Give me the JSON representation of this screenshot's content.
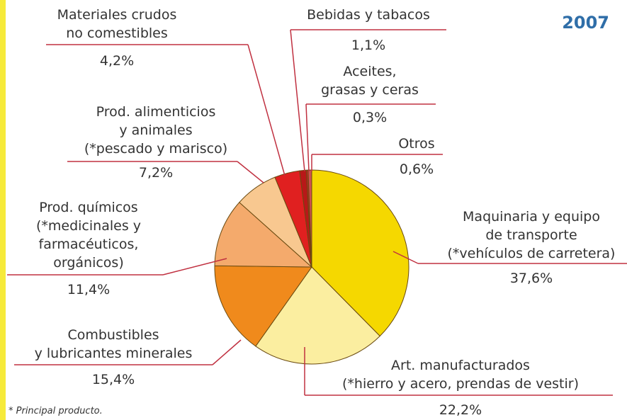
{
  "chart_data": {
    "type": "pie",
    "title": "2007",
    "categories": [
      [
        "Maquinaria y equipo",
        "de transporte",
        "(*vehículos de carretera)"
      ],
      [
        "Art. manufacturados",
        "(*hierro y acero, prendas de vestir)"
      ],
      [
        "Combustibles",
        "y lubricantes minerales"
      ],
      [
        "Prod. químicos",
        "(*medicinales y",
        "farmacéuticos,",
        "orgánicos)"
      ],
      [
        "Prod. alimenticios",
        "y animales",
        "(*pescado y marisco)"
      ],
      [
        "Materiales crudos",
        "no comestibles"
      ],
      [
        "Bebidas y tabacos"
      ],
      [
        "Aceites,",
        "grasas y ceras"
      ],
      [
        "Otros"
      ]
    ],
    "values": [
      37.6,
      22.2,
      15.4,
      11.4,
      7.2,
      4.2,
      1.1,
      0.3,
      0.6
    ],
    "value_labels": [
      "37,6%",
      "22,2%",
      "15,4%",
      "11,4%",
      "7,2%",
      "4,2%",
      "1,1%",
      "0,3%",
      "0,6%"
    ],
    "colors": [
      "#f5d800",
      "#fbeea0",
      "#f08a1c",
      "#f4aa6c",
      "#f8c890",
      "#e02020",
      "#b81818",
      "#c02828",
      "#d05050"
    ],
    "footnote": "* Principal producto."
  }
}
